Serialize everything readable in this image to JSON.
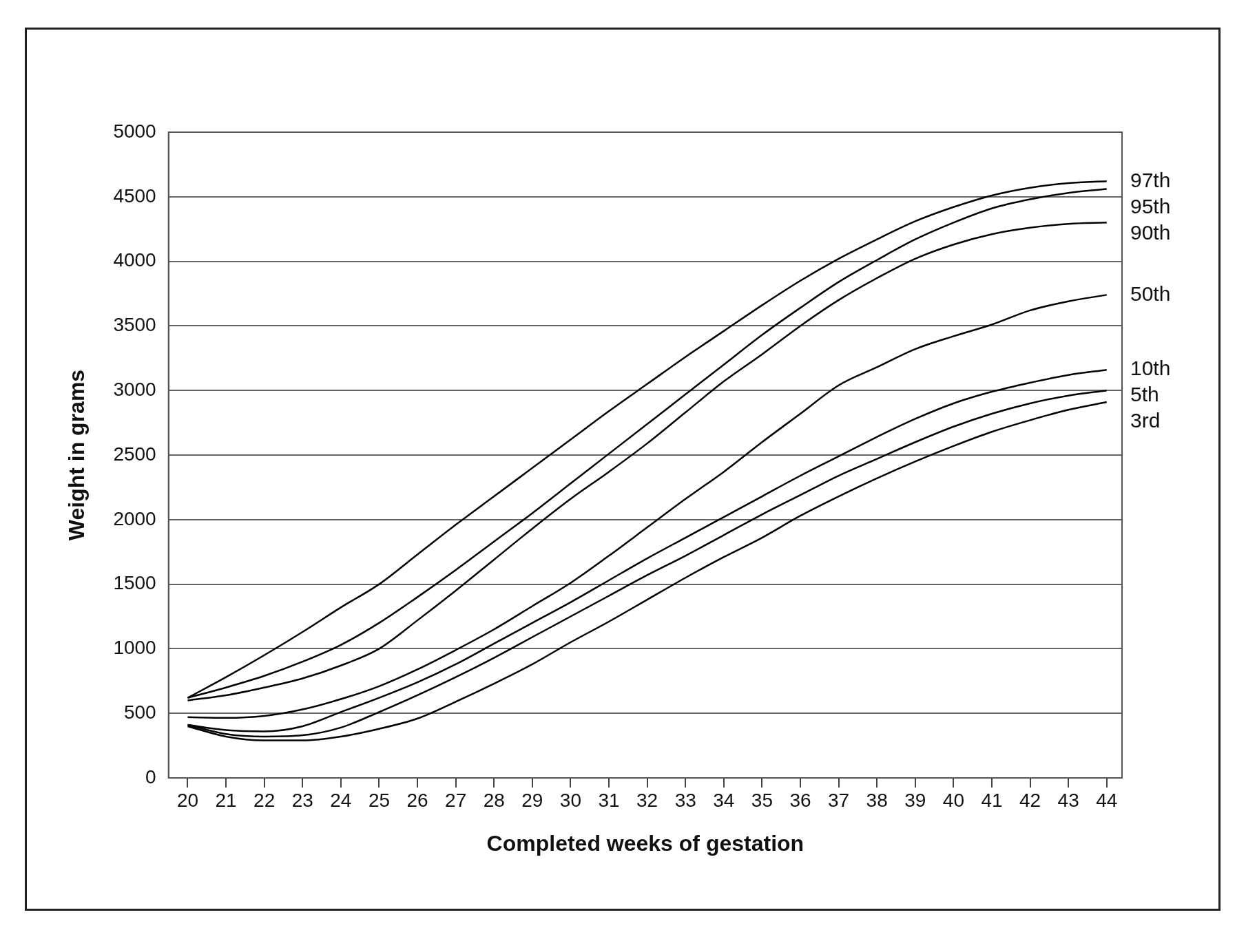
{
  "chart_data": {
    "type": "line",
    "xlabel": "Completed weeks of gestation",
    "ylabel": "Weight in grams",
    "x": [
      20,
      21,
      22,
      23,
      24,
      25,
      26,
      27,
      28,
      29,
      30,
      31,
      32,
      33,
      34,
      35,
      36,
      37,
      38,
      39,
      40,
      41,
      42,
      43,
      44
    ],
    "xlim": [
      19.5,
      44.4
    ],
    "xticks": [
      20,
      21,
      22,
      23,
      24,
      25,
      26,
      27,
      28,
      29,
      30,
      31,
      32,
      33,
      34,
      35,
      36,
      37,
      38,
      39,
      40,
      41,
      42,
      43,
      44
    ],
    "ylim": [
      0,
      5000
    ],
    "yticks": [
      0,
      500,
      1000,
      1500,
      2000,
      2500,
      3000,
      3500,
      4000,
      4500,
      5000
    ],
    "grid": "y",
    "legend": false,
    "marker": "none",
    "line_style": "solid",
    "series": [
      {
        "name": "97th",
        "color": "#000000",
        "values": [
          620,
          780,
          950,
          1130,
          1320,
          1500,
          1730,
          1960,
          2180,
          2400,
          2620,
          2840,
          3050,
          3260,
          3460,
          3660,
          3850,
          4020,
          4170,
          4310,
          4420,
          4510,
          4570,
          4605,
          4620
        ]
      },
      {
        "name": "95th",
        "color": "#000000",
        "values": [
          620,
          700,
          790,
          900,
          1030,
          1200,
          1400,
          1610,
          1830,
          2050,
          2280,
          2510,
          2740,
          2970,
          3200,
          3430,
          3640,
          3840,
          4010,
          4170,
          4300,
          4410,
          4480,
          4530,
          4560
        ]
      },
      {
        "name": "90th",
        "color": "#000000",
        "values": [
          600,
          640,
          700,
          770,
          870,
          1000,
          1220,
          1450,
          1690,
          1930,
          2160,
          2370,
          2590,
          2830,
          3070,
          3280,
          3500,
          3700,
          3870,
          4020,
          4130,
          4210,
          4260,
          4290,
          4300
        ]
      },
      {
        "name": "50th",
        "color": "#000000",
        "values": [
          470,
          465,
          480,
          530,
          610,
          710,
          840,
          990,
          1150,
          1330,
          1510,
          1720,
          1940,
          2160,
          2370,
          2600,
          2820,
          3040,
          3180,
          3320,
          3420,
          3510,
          3620,
          3690,
          3740
        ]
      },
      {
        "name": "10th",
        "color": "#000000",
        "values": [
          410,
          370,
          360,
          400,
          510,
          620,
          740,
          880,
          1040,
          1200,
          1360,
          1530,
          1700,
          1860,
          2020,
          2180,
          2340,
          2490,
          2640,
          2780,
          2900,
          2990,
          3060,
          3120,
          3160
        ]
      },
      {
        "name": "5th",
        "color": "#000000",
        "values": [
          410,
          340,
          320,
          330,
          390,
          510,
          640,
          780,
          930,
          1090,
          1250,
          1410,
          1570,
          1720,
          1880,
          2040,
          2190,
          2340,
          2470,
          2600,
          2720,
          2820,
          2900,
          2960,
          3000
        ]
      },
      {
        "name": "3rd",
        "color": "#000000",
        "values": [
          400,
          320,
          290,
          290,
          320,
          380,
          460,
          590,
          730,
          880,
          1050,
          1210,
          1380,
          1550,
          1710,
          1860,
          2030,
          2180,
          2320,
          2450,
          2570,
          2680,
          2770,
          2850,
          2910
        ]
      }
    ]
  }
}
